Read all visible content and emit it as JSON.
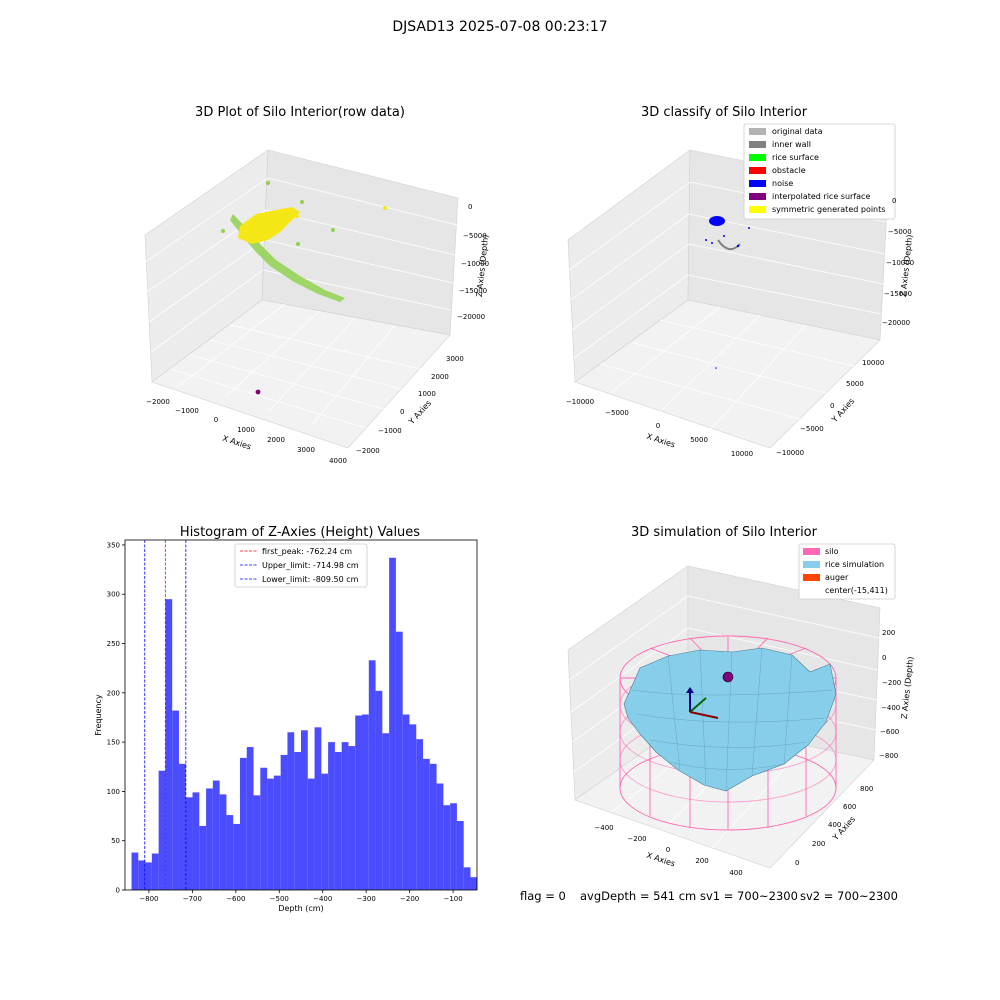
{
  "suptitle": "DJSAD13 2025-07-08 00:23:17",
  "colors": {
    "hist_fill": "#4c4cff",
    "peak_line": "#ff0000",
    "limit_line": "#0000ff",
    "pane_fill": "#f2f2f2",
    "pane_grid": "#dddddd",
    "rawdata_green": "#8fd14f",
    "rawdata_yellow": "#f5e616",
    "silo_pink": "#ff69b4",
    "rice_sky": "#87ceeb",
    "auger_orange": "#ff4500",
    "center_purple": "#800080"
  },
  "status_line": {
    "flag": "flag = 0",
    "avg_depth": "avgDepth = 541 cm",
    "sv1": "sv1 = 700~2300",
    "sv2": "sv2 = 700~2300"
  },
  "chart_data": [
    {
      "type": "scatter",
      "projection": "3d",
      "title": "3D Plot of Silo Interior(row data)",
      "xlabel": "X Axies",
      "ylabel": "Y Axies",
      "zlabel": "Z Axies (Depth)",
      "xticks": [
        "−2000",
        "−1000",
        "0",
        "1000",
        "2000",
        "3000",
        "4000"
      ],
      "yticks": [
        "−2000",
        "−1000",
        "0",
        "1000",
        "2000",
        "3000"
      ],
      "zticks": [
        "0",
        "−5000",
        "−10000",
        "−15000",
        "−20000"
      ],
      "xlim": [
        -2000,
        4000
      ],
      "ylim": [
        -2000,
        3000
      ],
      "zlim": [
        -20000,
        0
      ],
      "series": [
        {
          "color": "#8fd14f",
          "shape": "diagonal trail from upper left down to lower right"
        },
        {
          "color": "#f5e616",
          "shape": "dense cluster near the top"
        },
        {
          "color": "#800080",
          "shape": "single point near the floor"
        }
      ]
    },
    {
      "type": "scatter",
      "projection": "3d",
      "title": "3D classify of Silo Interior",
      "xlabel": "X Axies",
      "ylabel": "Y Axies",
      "zlabel": "Z Axies (Depth)",
      "xticks": [
        "−10000",
        "−5000",
        "0",
        "5000",
        "10000"
      ],
      "yticks": [
        "−10000",
        "−5000",
        "0",
        "5000",
        "10000"
      ],
      "zticks": [
        "0",
        "−5000",
        "−10000",
        "−15000",
        "−20000"
      ],
      "xlim": [
        -10000,
        10000
      ],
      "ylim": [
        -10000,
        10000
      ],
      "zlim": [
        -20000,
        0
      ],
      "legend_position": "upper right",
      "legend": [
        {
          "label": "original data",
          "color": "#b3b3b3"
        },
        {
          "label": "inner wall",
          "color": "#808080"
        },
        {
          "label": "rice surface",
          "color": "#00ff00"
        },
        {
          "label": "obstacle",
          "color": "#ff0000"
        },
        {
          "label": "noise",
          "color": "#0000ff"
        },
        {
          "label": "interpolated rice surface",
          "color": "#800080"
        },
        {
          "label": "symmetric generated points",
          "color": "#ffff00"
        }
      ]
    },
    {
      "type": "bar",
      "title": "Histogram of Z-Axies (Height) Values",
      "xlabel": "Depth (cm)",
      "ylabel": "Frequency",
      "xlim": [
        -855,
        -45
      ],
      "ylim": [
        0,
        355
      ],
      "xticks": [
        -800,
        -700,
        -600,
        -500,
        -400,
        -300,
        -200,
        -100
      ],
      "xtick_labels": [
        "−800",
        "−700",
        "−600",
        "−500",
        "−400",
        "−300",
        "−200",
        "−100"
      ],
      "yticks": [
        0,
        50,
        100,
        150,
        200,
        250,
        300,
        350
      ],
      "bin_start": -840,
      "bin_width": 15.6,
      "values": [
        38,
        30,
        28,
        37,
        121,
        295,
        182,
        128,
        94,
        99,
        65,
        103,
        111,
        97,
        76,
        67,
        134,
        145,
        96,
        124,
        113,
        116,
        137,
        160,
        140,
        162,
        113,
        165,
        118,
        150,
        140,
        150,
        146,
        177,
        178,
        233,
        202,
        159,
        337,
        262,
        178,
        168,
        153,
        133,
        128,
        108,
        86,
        88,
        70,
        23,
        13
      ],
      "vlines": [
        {
          "label": "first_peak: -762.24 cm",
          "x": -762.24,
          "color": "#ff0000"
        },
        {
          "label": "Upper_limit: -714.98 cm",
          "x": -714.98,
          "color": "#0000ff"
        },
        {
          "label": "Lower_limit: -809.50 cm",
          "x": -809.5,
          "color": "#0000ff"
        }
      ],
      "legend_position": "top-center"
    },
    {
      "type": "surface",
      "projection": "3d",
      "title": "3D simulation of Silo Interior",
      "xlabel": "X Axies",
      "ylabel": "Y Axies",
      "zlabel": "Z Axies (Depth)",
      "xticks": [
        "−400",
        "−200",
        "0",
        "200",
        "400"
      ],
      "yticks": [
        "0",
        "200",
        "400",
        "600",
        "800"
      ],
      "zticks": [
        "200",
        "0",
        "−200",
        "−400",
        "−600",
        "−800"
      ],
      "xlim": [
        -500,
        500
      ],
      "ylim": [
        -100,
        900
      ],
      "zlim": [
        -900,
        300
      ],
      "legend_position": "upper right",
      "legend": [
        {
          "label": "silo",
          "color": "#ff69b4"
        },
        {
          "label": "rice simulation",
          "color": "#87ceeb"
        },
        {
          "label": "auger",
          "color": "#ff4500"
        },
        {
          "label": "center(-15,411)",
          "color": ""
        }
      ]
    }
  ]
}
